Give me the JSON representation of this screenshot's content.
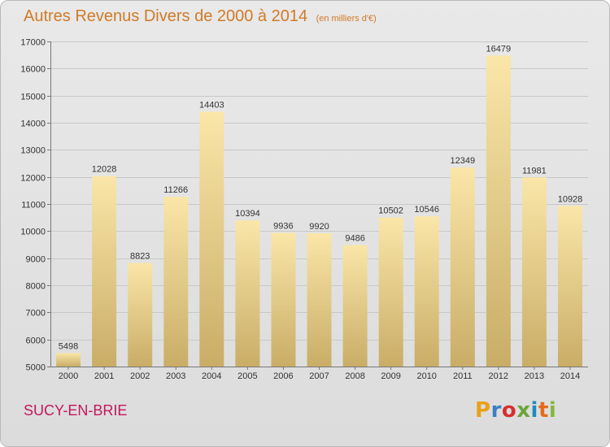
{
  "header": {
    "title": "Autres Revenus Divers de 2000 à 2014",
    "subtitle": "(en milliers d'€)"
  },
  "footer": {
    "city": "SUCY-EN-BRIE",
    "logo_text": "Proxiti",
    "logo_colors": [
      "#e8a11b",
      "#3b7fc4",
      "#d62f2f",
      "#6aa53c",
      "#1f8ac0",
      "#e46b1c",
      "#82b83b"
    ]
  },
  "colors": {
    "bar_light": "#fae6a8",
    "bar_dark": "#c9ad67",
    "grid": "#c8c8c8"
  },
  "chart_data": {
    "type": "bar",
    "categories": [
      "2000",
      "2001",
      "2002",
      "2003",
      "2004",
      "2005",
      "2006",
      "2007",
      "2008",
      "2009",
      "2010",
      "2011",
      "2012",
      "2013",
      "2014"
    ],
    "values": [
      5498,
      12028,
      8823,
      11266,
      14403,
      10394,
      9936,
      9920,
      9486,
      10502,
      10546,
      12349,
      16479,
      11981,
      10928
    ],
    "ylim": [
      5000,
      17000
    ],
    "yticks": [
      5000,
      6000,
      7000,
      8000,
      9000,
      10000,
      11000,
      12000,
      13000,
      14000,
      15000,
      16000,
      17000
    ],
    "grid": true
  }
}
